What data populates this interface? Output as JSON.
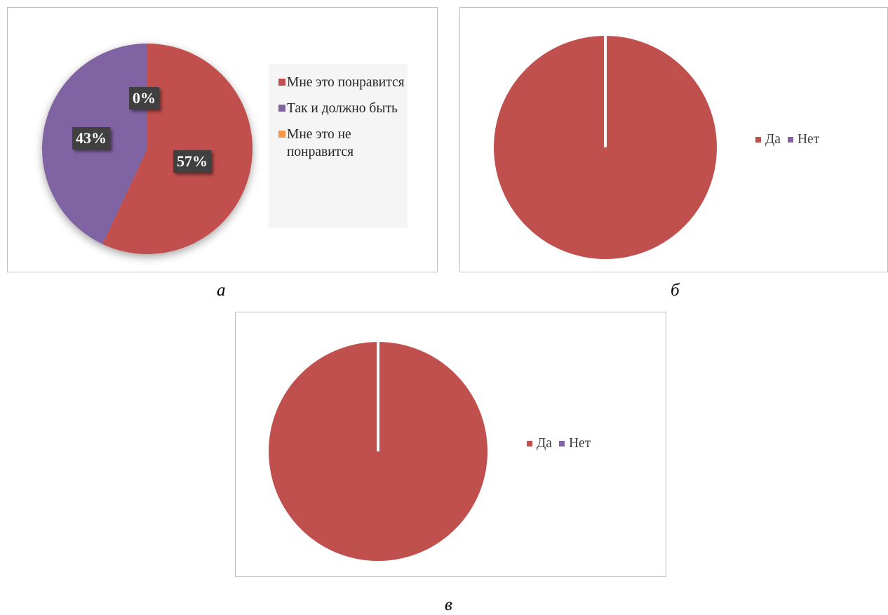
{
  "chart_data": [
    {
      "type": "pie",
      "caption": "а",
      "categories": [
        "Мне это понравится",
        "Так и должно быть",
        "Мне это не понравится"
      ],
      "values": [
        57,
        43,
        0
      ],
      "data_labels": [
        "57%",
        "43%",
        "0%"
      ],
      "colors": [
        "#c0504d",
        "#8064a2",
        "#f79646"
      ],
      "legend": "right"
    },
    {
      "type": "pie",
      "caption": "б",
      "categories": [
        "Да",
        "Нет"
      ],
      "values": [
        100,
        0
      ],
      "colors": [
        "#c0504d",
        "#8064a2"
      ],
      "legend": "right"
    },
    {
      "type": "pie",
      "caption": "в",
      "categories": [
        "Да",
        "Нет"
      ],
      "values": [
        100,
        0
      ],
      "colors": [
        "#c0504d",
        "#8064a2"
      ],
      "legend": "right"
    }
  ]
}
